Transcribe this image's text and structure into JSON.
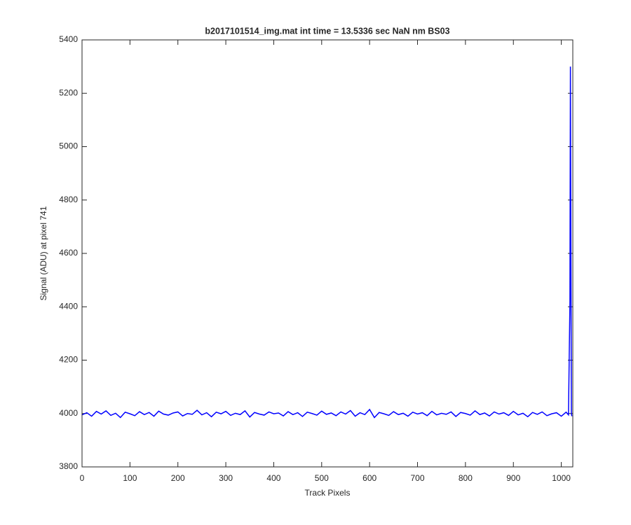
{
  "chart_data": {
    "type": "line",
    "title": "b2017101514_img.mat int time = 13.5336 sec  NaN nm BS03",
    "x_label": "Track Pixels",
    "y_label": "Signal (ADU) at pixel 741",
    "x": [
      0,
      10,
      20,
      30,
      40,
      50,
      60,
      70,
      80,
      90,
      100,
      110,
      120,
      130,
      140,
      150,
      160,
      170,
      180,
      190,
      200,
      210,
      220,
      230,
      240,
      250,
      260,
      270,
      280,
      290,
      300,
      310,
      320,
      330,
      340,
      350,
      360,
      370,
      380,
      390,
      400,
      410,
      420,
      430,
      440,
      450,
      460,
      470,
      480,
      490,
      500,
      510,
      520,
      530,
      540,
      550,
      560,
      570,
      580,
      590,
      600,
      610,
      620,
      630,
      640,
      650,
      660,
      670,
      680,
      690,
      700,
      710,
      720,
      730,
      740,
      750,
      760,
      770,
      780,
      790,
      800,
      810,
      820,
      830,
      840,
      850,
      860,
      870,
      880,
      890,
      900,
      910,
      920,
      930,
      940,
      950,
      960,
      970,
      980,
      990,
      1000,
      1010,
      1015,
      1018,
      1019,
      1020,
      1021,
      1022
    ],
    "series": [
      {
        "name": "signal",
        "color": "#0000ff",
        "values": [
          3995,
          4003,
          3990,
          4008,
          3998,
          4010,
          3993,
          4001,
          3985,
          4005,
          3999,
          3992,
          4007,
          3996,
          4004,
          3990,
          4009,
          3998,
          3994,
          4002,
          4006,
          3991,
          4000,
          3997,
          4012,
          3995,
          4003,
          3988,
          4005,
          3999,
          4008,
          3993,
          4001,
          3996,
          4010,
          3987,
          4004,
          3998,
          3994,
          4006,
          3999,
          4002,
          3991,
          4007,
          3996,
          4003,
          3989,
          4005,
          4000,
          3994,
          4009,
          3997,
          4002,
          3992,
          4006,
          3998,
          4011,
          3990,
          4003,
          3996,
          4015,
          3985,
          4004,
          3999,
          3993,
          4007,
          3996,
          4001,
          3990,
          4005,
          3998,
          4003,
          3992,
          4008,
          3995,
          4001,
          3997,
          4006,
          3989,
          4004,
          4000,
          3994,
          4010,
          3996,
          4002,
          3991,
          4006,
          3998,
          4003,
          3993,
          4008,
          3995,
          4001,
          3988,
          4004,
          3997,
          4006,
          3992,
          3999,
          4003,
          3990,
          4005,
          3995,
          4420,
          5300,
          4650,
          4000,
          3990
        ]
      }
    ],
    "xlim": [
      0,
      1024
    ],
    "xticks": [
      0,
      100,
      200,
      300,
      400,
      500,
      600,
      700,
      800,
      900,
      1000
    ],
    "ylim": [
      3800,
      5400
    ],
    "yticks": [
      3800,
      4000,
      4200,
      4400,
      4600,
      4800,
      5000,
      5200,
      5400
    ],
    "grid": false
  }
}
